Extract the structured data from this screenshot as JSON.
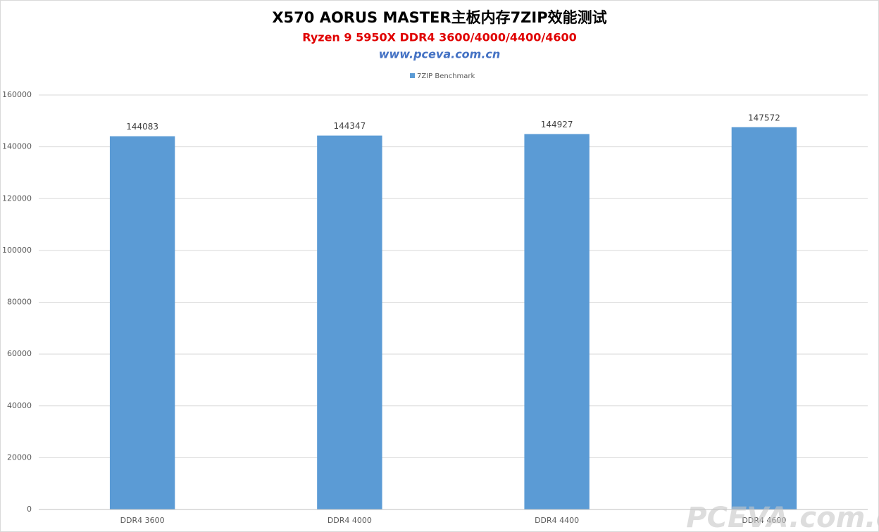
{
  "chart_data": {
    "type": "bar",
    "title": "X570 AORUS MASTER主板内存7ZIP效能测试",
    "subtitle": "Ryzen 9 5950X DDR4 3600/4000/4400/4600",
    "source": "www.pceva.com.cn",
    "watermark": "PCEVA.com.cn",
    "categories": [
      "DDR4 3600",
      "DDR4 4000",
      "DDR4 4400",
      "DDR4 4600"
    ],
    "series": [
      {
        "name": "7ZIP Benchmark",
        "color": "#5b9bd5",
        "values": [
          144083,
          144347,
          144927,
          147572
        ]
      }
    ],
    "ylim": [
      0,
      160000
    ],
    "yticks": [
      0,
      20000,
      40000,
      60000,
      80000,
      100000,
      120000,
      140000,
      160000
    ],
    "grid": true,
    "legend": "top"
  }
}
